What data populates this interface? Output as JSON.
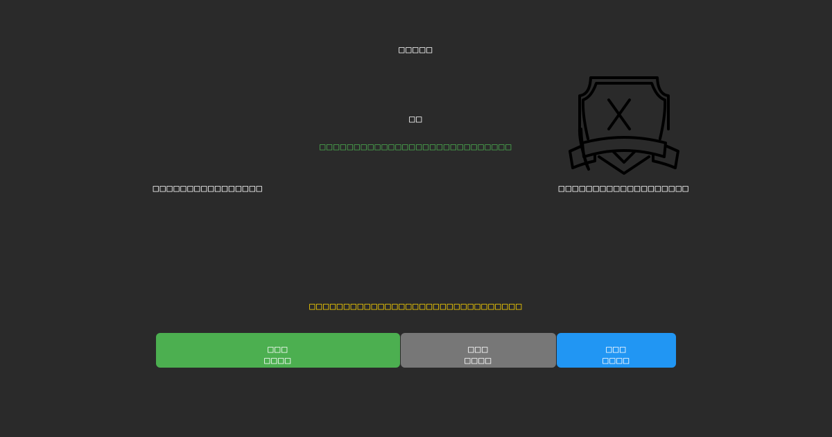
{
  "title": "□□□□□",
  "status_heading": "□□",
  "status_message": "□□□□□□□□□□□□□□□□□□□□□□□□□□□□",
  "left_label": "□□□□□□□□□□□□□□□□",
  "right_label": "□□□□□□□□□□□□□□□□□□□",
  "warning_message": "□□□□□□□□□□□□□□□□□□□□□□□□□□□□□□□",
  "icon": "shield-x-badge-icon",
  "colors": {
    "background": "#2a2a2a",
    "success_text": "#4caf50",
    "warning_text": "#ffd700",
    "green_button": "#4caf50",
    "gray_button": "#777777",
    "blue_button": "#2196f3"
  },
  "buttons": [
    {
      "line1": "□□□",
      "line2": "□□□□"
    },
    {
      "line1": "□□□",
      "line2": "□□□□"
    },
    {
      "line1": "□□□",
      "line2": "□□□□"
    }
  ]
}
